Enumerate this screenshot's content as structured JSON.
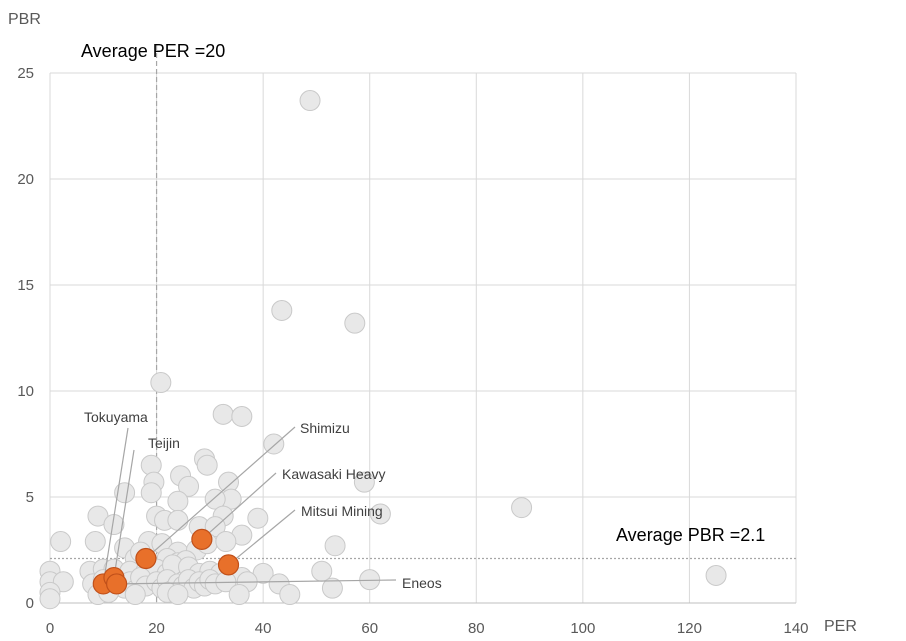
{
  "chart_data": {
    "type": "scatter",
    "title": "",
    "xlabel": "PER",
    "ylabel": "PBR",
    "xlim": [
      0,
      140
    ],
    "ylim": [
      0,
      25
    ],
    "x_ticks": [
      0,
      20,
      40,
      60,
      80,
      100,
      120,
      140
    ],
    "y_ticks": [
      0,
      5,
      10,
      15,
      20,
      25
    ],
    "grid": true,
    "colors": {
      "background_points": "#e8e8e8",
      "background_edge": "#c9c9c9",
      "highlight": "#e8702a",
      "highlight_edge": "#c0501a"
    },
    "reference_lines": [
      {
        "axis": "x",
        "value": 20,
        "label": "Average PER =20"
      },
      {
        "axis": "y",
        "value": 2.1,
        "label": "Average PBR =2.1"
      }
    ],
    "points": [
      [
        48.8,
        23.7
      ],
      [
        43.5,
        13.8
      ],
      [
        57.2,
        13.2
      ],
      [
        20.8,
        10.4
      ],
      [
        32.5,
        8.9
      ],
      [
        36,
        8.8
      ],
      [
        42,
        7.5
      ],
      [
        29,
        6.8
      ],
      [
        29.5,
        6.5
      ],
      [
        19,
        6.5
      ],
      [
        24.5,
        6
      ],
      [
        33.5,
        5.7
      ],
      [
        19.5,
        5.7
      ],
      [
        26,
        5.5
      ],
      [
        14,
        5.2
      ],
      [
        19,
        5.2
      ],
      [
        59,
        5.7
      ],
      [
        34,
        4.9
      ],
      [
        24,
        4.8
      ],
      [
        31,
        4.9
      ],
      [
        88.5,
        4.5
      ],
      [
        62,
        4.2
      ],
      [
        9,
        4.1
      ],
      [
        20,
        4.1
      ],
      [
        21.5,
        3.9
      ],
      [
        24,
        3.9
      ],
      [
        32.5,
        4.1
      ],
      [
        39,
        4
      ],
      [
        12,
        3.7
      ],
      [
        28,
        3.6
      ],
      [
        31,
        3.6
      ],
      [
        36,
        3.2
      ],
      [
        2,
        2.9
      ],
      [
        8.5,
        2.9
      ],
      [
        18.5,
        2.9
      ],
      [
        21,
        2.8
      ],
      [
        24,
        2.4
      ],
      [
        27.5,
        2.5
      ],
      [
        29.5,
        2.8
      ],
      [
        33,
        2.9
      ],
      [
        14,
        2.6
      ],
      [
        16,
        2.1
      ],
      [
        17,
        2.4
      ],
      [
        18,
        2
      ],
      [
        22,
        2.1
      ],
      [
        24,
        1.9
      ],
      [
        25.5,
        2
      ],
      [
        53.5,
        2.7
      ],
      [
        7.5,
        1.5
      ],
      [
        10,
        1.6
      ],
      [
        12,
        1.6
      ],
      [
        15,
        1.5
      ],
      [
        18,
        1.5
      ],
      [
        20,
        1.6
      ],
      [
        22,
        1.4
      ],
      [
        23,
        1.8
      ],
      [
        26,
        1.7
      ],
      [
        28,
        1.4
      ],
      [
        30,
        1.5
      ],
      [
        32,
        1.4
      ],
      [
        34,
        1.3
      ],
      [
        36,
        1.2
      ],
      [
        40,
        1.4
      ],
      [
        51,
        1.5
      ],
      [
        60,
        1.1
      ],
      [
        125,
        1.3
      ],
      [
        0,
        1.5
      ],
      [
        0,
        1
      ],
      [
        2.5,
        1
      ],
      [
        8,
        0.9
      ],
      [
        10,
        1.1
      ],
      [
        12,
        0.8
      ],
      [
        14,
        0.7
      ],
      [
        15,
        1
      ],
      [
        16,
        0.6
      ],
      [
        17,
        1.2
      ],
      [
        18,
        0.8
      ],
      [
        20,
        1
      ],
      [
        21,
        0.7
      ],
      [
        22,
        1.1
      ],
      [
        23,
        0.6
      ],
      [
        24,
        0.9
      ],
      [
        25,
        0.8
      ],
      [
        26,
        1.1
      ],
      [
        27,
        0.7
      ],
      [
        28,
        1
      ],
      [
        29,
        0.8
      ],
      [
        30,
        1.1
      ],
      [
        31,
        0.9
      ],
      [
        33,
        1
      ],
      [
        37,
        1
      ],
      [
        43,
        0.9
      ],
      [
        45,
        0.4
      ],
      [
        35.5,
        0.4
      ],
      [
        53,
        0.7
      ],
      [
        9,
        0.4
      ],
      [
        11,
        0.5
      ],
      [
        16,
        0.4
      ],
      [
        22,
        0.5
      ],
      [
        24,
        0.4
      ],
      [
        0,
        0.5
      ],
      [
        0,
        0.2
      ]
    ],
    "highlights": [
      {
        "name": "Tokuyama",
        "x": 10,
        "y": 0.9
      },
      {
        "name": "Teijin",
        "x": 12,
        "y": 1.2
      },
      {
        "name": "Shimizu",
        "x": 18,
        "y": 2.1
      },
      {
        "name": "Kawasaki Heavy",
        "x": 28.5,
        "y": 3
      },
      {
        "name": "Mitsui Mining",
        "x": 33.5,
        "y": 1.8
      },
      {
        "name": "Eneos",
        "x": 12.5,
        "y": 0.9
      }
    ]
  }
}
